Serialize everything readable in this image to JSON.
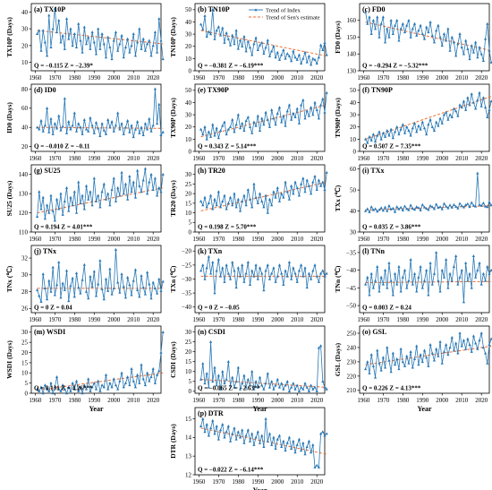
{
  "colors": {
    "series": "#2878b5",
    "trend": "#ee6a2c",
    "axis": "#000000"
  },
  "legend": {
    "index_label": "Trend of Index",
    "sen_label": "Trend of Sen's estimate"
  },
  "x_axis": {
    "label": "Year",
    "ticks": [
      1960,
      1970,
      1980,
      1990,
      2000,
      2010,
      2020
    ],
    "range": [
      1958,
      2024
    ]
  },
  "chart_data": [
    {
      "type": "line",
      "id": "a",
      "title": "(a) TX10P",
      "ylabel": "TX10P (Days)",
      "ylim": [
        5,
        45
      ],
      "yticks": [
        10,
        20,
        30,
        40
      ],
      "stats": "Q = −0.115  Z = −2.39*",
      "trend_start": 29,
      "trend_end": 21,
      "x_start": 1961,
      "values": [
        27,
        29,
        17,
        29,
        22,
        14,
        38,
        19,
        30,
        42,
        28,
        35,
        22,
        26,
        18,
        36,
        24,
        30,
        20,
        27,
        19,
        33,
        23,
        16,
        31,
        21,
        25,
        18,
        28,
        22,
        15,
        30,
        18,
        27,
        21,
        13,
        25,
        19,
        12,
        23,
        28,
        17,
        21,
        26,
        13,
        19,
        24,
        16,
        20,
        27,
        14,
        22,
        30,
        18,
        24,
        17,
        21,
        23,
        14,
        20,
        28,
        16,
        36,
        23,
        12
      ]
    },
    {
      "type": "line",
      "id": "b",
      "title": "(b) TN10P",
      "ylabel": "TN10P (Days)",
      "ylim": [
        0,
        55
      ],
      "yticks": [
        0,
        10,
        20,
        30,
        40,
        50
      ],
      "stats": "Q = −0.381  Z = −6.19***",
      "trend_start": 33,
      "trend_end": 12,
      "x_start": 1961,
      "values": [
        38,
        34,
        45,
        28,
        32,
        30,
        50,
        26,
        33,
        36,
        29,
        35,
        23,
        31,
        26,
        21,
        29,
        22,
        33,
        18,
        25,
        20,
        28,
        16,
        24,
        19,
        13,
        22,
        27,
        17,
        21,
        23,
        14,
        19,
        25,
        12,
        16,
        20,
        11,
        15,
        9,
        13,
        17,
        10,
        14,
        12,
        8,
        16,
        11,
        9,
        13,
        6,
        10,
        15,
        7,
        12,
        5,
        10,
        9,
        6,
        11,
        21,
        17,
        23,
        13
      ]
    },
    {
      "type": "line",
      "id": "c",
      "title": "(c) FD0",
      "ylabel": "FD0 (Days)",
      "ylim": [
        130,
        170
      ],
      "yticks": [
        130,
        140,
        150,
        160
      ],
      "stats": "Q = −0.294  Z = −5.32***",
      "trend_start": 159,
      "trend_end": 142,
      "x_start": 1961,
      "values": [
        165,
        158,
        162,
        152,
        160,
        155,
        162,
        150,
        158,
        162,
        147,
        155,
        150,
        160,
        152,
        157,
        160,
        148,
        155,
        158,
        153,
        157,
        160,
        150,
        155,
        158,
        151,
        154,
        157,
        152,
        149,
        156,
        153,
        159,
        151,
        147,
        154,
        157,
        150,
        145,
        152,
        148,
        155,
        142,
        150,
        147,
        139,
        146,
        152,
        144,
        140,
        148,
        143,
        137,
        145,
        141,
        147,
        138,
        144,
        140,
        136,
        149,
        158,
        142,
        135
      ]
    },
    {
      "type": "line",
      "id": "d",
      "title": "(d) ID0",
      "ylabel": "ID0 (Days)",
      "ylim": [
        15,
        85
      ],
      "yticks": [
        20,
        40,
        60,
        80
      ],
      "stats": "Q = −0.010  Z = −0.11",
      "trend_start": 40,
      "trend_end": 39,
      "x_start": 1961,
      "values": [
        40,
        38,
        47,
        36,
        42,
        60,
        35,
        49,
        33,
        44,
        39,
        52,
        37,
        41,
        70,
        34,
        46,
        38,
        42,
        55,
        36,
        44,
        40,
        33,
        48,
        38,
        36,
        50,
        42,
        34,
        45,
        39,
        31,
        44,
        37,
        33,
        48,
        40,
        46,
        36,
        42,
        55,
        38,
        44,
        33,
        40,
        47,
        35,
        42,
        30,
        38,
        46,
        34,
        40,
        32,
        44,
        38,
        49,
        36,
        42,
        80,
        44,
        64,
        32,
        35
      ]
    },
    {
      "type": "line",
      "id": "e",
      "title": "(e) TX90P",
      "ylabel": "TX90P (Days)",
      "ylim": [
        0,
        55
      ],
      "yticks": [
        0,
        10,
        20,
        30,
        40,
        50
      ],
      "stats": "Q = 0.343  Z = 5.14***",
      "trend_start": 12,
      "trend_end": 38,
      "x_start": 1961,
      "values": [
        18,
        14,
        20,
        10,
        16,
        12,
        22,
        13,
        19,
        11,
        17,
        21,
        24,
        14,
        18,
        20,
        26,
        16,
        22,
        30,
        19,
        23,
        17,
        25,
        28,
        20,
        15,
        24,
        21,
        29,
        17,
        27,
        22,
        32,
        26,
        20,
        34,
        27,
        22,
        31,
        36,
        24,
        29,
        21,
        33,
        38,
        26,
        31,
        28,
        35,
        23,
        38,
        42,
        27,
        33,
        29,
        36,
        30,
        40,
        34,
        27,
        38,
        43,
        32,
        48
      ]
    },
    {
      "type": "line",
      "id": "f",
      "title": "(f) TN90P",
      "ylabel": "TN90P (Days)",
      "ylim": [
        0,
        55
      ],
      "yticks": [
        0,
        10,
        20,
        30,
        40,
        50
      ],
      "stats": "Q = 0.507  Z = 7.35***",
      "trend_start": 10,
      "trend_end": 45,
      "x_start": 1961,
      "values": [
        10,
        7,
        12,
        9,
        14,
        8,
        13,
        16,
        10,
        15,
        12,
        17,
        13,
        18,
        11,
        16,
        20,
        14,
        18,
        22,
        15,
        20,
        17,
        13,
        19,
        23,
        16,
        21,
        18,
        24,
        19,
        14,
        22,
        26,
        20,
        17,
        24,
        21,
        27,
        23,
        30,
        32,
        26,
        30,
        28,
        35,
        33,
        29,
        38,
        36,
        41,
        34,
        44,
        38,
        47,
        40,
        35,
        42,
        48,
        37,
        44,
        36,
        28,
        34,
        41
      ]
    },
    {
      "type": "line",
      "id": "g",
      "title": "(g) SU25",
      "ylabel": "SU25 (Days)",
      "ylim": [
        110,
        145
      ],
      "yticks": [
        110,
        120,
        130,
        140
      ],
      "stats": "Q = 0.194  Z = 4.01***",
      "trend_start": 120,
      "trend_end": 133,
      "x_start": 1961,
      "values": [
        118,
        131,
        122,
        128,
        117,
        124,
        120,
        129,
        121,
        116,
        127,
        122,
        130,
        119,
        126,
        133,
        121,
        128,
        124,
        131,
        120,
        136,
        125,
        129,
        122,
        134,
        127,
        131,
        124,
        138,
        126,
        129,
        123,
        131,
        135,
        127,
        130,
        124,
        132,
        138,
        126,
        133,
        129,
        141,
        130,
        135,
        127,
        139,
        131,
        136,
        128,
        142,
        134,
        131,
        137,
        143,
        130,
        136,
        140,
        132,
        138,
        129,
        133,
        131,
        140
      ]
    },
    {
      "type": "line",
      "id": "h",
      "title": "(h) TR20",
      "ylabel": "TR20 (Days)",
      "ylim": [
        0,
        35
      ],
      "yticks": [
        0,
        5,
        10,
        15,
        20,
        25,
        30
      ],
      "stats": "Q = 0.198  Z = 5.70***",
      "trend_start": 11,
      "trend_end": 26,
      "x_start": 1961,
      "values": [
        16,
        14,
        18,
        13,
        15,
        19,
        12,
        17,
        14,
        21,
        13,
        16,
        19,
        12,
        15,
        18,
        14,
        20,
        13,
        17,
        11,
        16,
        19,
        14,
        22,
        17,
        13,
        25,
        18,
        15,
        20,
        16,
        13,
        19,
        10,
        17,
        14,
        21,
        18,
        23,
        16,
        20,
        18,
        26,
        21,
        17,
        24,
        20,
        26,
        23,
        19,
        25,
        28,
        21,
        27,
        24,
        20,
        26,
        29,
        22,
        27,
        24,
        26,
        22,
        31
      ]
    },
    {
      "type": "line",
      "id": "i",
      "title": "(i) TXx",
      "ylabel": "TXx (℃)",
      "ylim": [
        30,
        62
      ],
      "yticks": [
        30,
        40,
        50,
        60
      ],
      "stats": "Q = 0.035  Z = 3.86***",
      "trend_start": 40.5,
      "trend_end": 42.5,
      "x_start": 1961,
      "values": [
        40,
        41,
        39.5,
        42,
        40.5,
        41,
        39.8,
        40.6,
        41.5,
        40.2,
        41.8,
        40,
        42.5,
        40.8,
        41.3,
        39.6,
        42,
        40.9,
        41.7,
        40.3,
        42.3,
        41,
        40.5,
        42.8,
        41.2,
        40.7,
        42,
        41.5,
        40.4,
        43,
        41.8,
        41.2,
        40.6,
        42.5,
        41.9,
        41,
        43.2,
        41.6,
        42,
        40.9,
        43.5,
        42.2,
        41.4,
        42.8,
        41.7,
        43,
        42.1,
        41.3,
        43.6,
        42.4,
        41.8,
        42.9,
        43.4,
        42,
        44,
        42.6,
        42.2,
        58,
        43,
        42.5,
        43.8,
        42.2,
        41.9,
        44.3,
        42.8
      ]
    },
    {
      "type": "line",
      "id": "j",
      "title": "(j) TNx",
      "ylabel": "TNx (℃)",
      "ylim": [
        25.5,
        33.5
      ],
      "yticks": [
        26,
        28,
        30,
        32
      ],
      "stats": "Q = 0  Z = 0.04",
      "trend_start": 28.4,
      "trend_end": 28.4,
      "x_start": 1961,
      "values": [
        28.2,
        27.5,
        26.8,
        30.1,
        28.4,
        27.1,
        29.3,
        28,
        30.9,
        27.6,
        28.8,
        31.5,
        27.3,
        29,
        28.2,
        30.5,
        26.9,
        28.7,
        29.6,
        27.4,
        30.2,
        28.5,
        27.8,
        29.4,
        31.2,
        28,
        27.2,
        29.8,
        28.6,
        30.4,
        27.5,
        28.9,
        31.7,
        28.3,
        27.1,
        29.5,
        28.1,
        30.7,
        27.7,
        28.4,
        33,
        29.1,
        27.9,
        30.1,
        28.6,
        27.3,
        29.7,
        28.8,
        27.6,
        29.3,
        30.6,
        28.2,
        27.4,
        29.9,
        28.5,
        27.7,
        30.3,
        28.9,
        27.2,
        29.1,
        28.4,
        27.8,
        29.5,
        28.1,
        29.2
      ]
    },
    {
      "type": "line",
      "id": "k",
      "title": "(k) TXn",
      "ylabel": "TXn (℃)",
      "ylim": [
        -42,
        -18
      ],
      "yticks": [
        -40,
        -35,
        -30,
        -25,
        -20
      ],
      "stats": "Q = 0  Z = −0.05",
      "trend_start": -29,
      "trend_end": -29,
      "x_start": 1961,
      "values": [
        -27,
        -25,
        -30,
        -26,
        -22,
        -28,
        -24,
        -35,
        -27,
        -23,
        -29,
        -26,
        -31,
        -25,
        -28,
        -30,
        -24,
        -27,
        -33,
        -26,
        -29,
        -25,
        -31,
        -28,
        -24,
        -32,
        -27,
        -29,
        -25,
        -30,
        -26,
        -28,
        -34,
        -27,
        -25,
        -30,
        -28,
        -26,
        -31,
        -29,
        -25,
        -28,
        -32,
        -27,
        -29,
        -24,
        -30,
        -26,
        -28,
        -31,
        -27,
        -25,
        -29,
        -26,
        -33,
        -28,
        -30,
        -27,
        -25,
        -29,
        -31,
        -28,
        -27,
        -29,
        -28
      ]
    },
    {
      "type": "line",
      "id": "l",
      "title": "(l) TNn",
      "ylabel": "TNn (℃)",
      "ylim": [
        -52,
        -33
      ],
      "yticks": [
        -50,
        -45,
        -40,
        -35
      ],
      "stats": "Q = 0.003  Z = 0.24",
      "trend_start": -43.5,
      "trend_end": -43.2,
      "x_start": 1961,
      "values": [
        -44,
        -42,
        -47,
        -41,
        -45,
        -43,
        -39,
        -46,
        -42,
        -44,
        -40,
        -45,
        -38,
        -43,
        -47,
        -41,
        -44,
        -39,
        -46,
        -42,
        -40,
        -45,
        -43,
        -37,
        -44,
        -41,
        -46,
        -42,
        -39,
        -45,
        -43,
        -40,
        -47,
        -38,
        -44,
        -41,
        -35,
        -43,
        -46,
        -40,
        -42,
        -37,
        -45,
        -41,
        -43,
        -39,
        -36,
        -44,
        -42,
        -40,
        -49,
        -38,
        -43,
        -41,
        -45,
        -36,
        -42,
        -40,
        -38,
        -44,
        -41,
        -43,
        -39,
        -41,
        -40
      ]
    },
    {
      "type": "line",
      "id": "m",
      "title": "(m) WSDI",
      "ylabel": "WSDI (Days)",
      "ylim": [
        0,
        33
      ],
      "yticks": [
        0,
        5,
        10,
        15,
        20,
        25,
        30
      ],
      "stats": "Q = 0.131  Z = 4.26***",
      "trend_start": 1.5,
      "trend_end": 10,
      "x_start": 1961,
      "values": [
        2,
        1,
        3,
        0,
        4,
        2,
        1,
        5,
        0,
        3,
        8,
        2,
        1,
        4,
        2,
        0,
        3,
        1,
        5,
        2,
        6,
        1,
        3,
        0,
        4,
        2,
        7,
        1,
        3,
        5,
        2,
        6,
        1,
        4,
        3,
        9,
        2,
        5,
        3,
        7,
        4,
        2,
        6,
        10,
        3,
        5,
        8,
        4,
        12,
        6,
        3,
        9,
        5,
        14,
        7,
        4,
        10,
        6,
        8,
        12,
        5,
        9,
        11,
        20,
        30
      ]
    },
    {
      "type": "line",
      "id": "n",
      "title": "(n) CSDI",
      "ylabel": "CSDI (Days)",
      "ylim": [
        -1,
        33
      ],
      "yticks": [
        0,
        5,
        10,
        15,
        20,
        25,
        30
      ],
      "stats": "Q = −0.065  Z = −2.63**",
      "trend_start": 6,
      "trend_end": 2,
      "x_start": 1961,
      "values": [
        6,
        14,
        4,
        9,
        2,
        25,
        5,
        12,
        3,
        8,
        1,
        10,
        4,
        6,
        15,
        3,
        7,
        2,
        5,
        12,
        1,
        4,
        8,
        2,
        6,
        3,
        10,
        1,
        5,
        2,
        7,
        3,
        1,
        4,
        9,
        2,
        5,
        1,
        3,
        6,
        2,
        4,
        1,
        3,
        5,
        0,
        2,
        4,
        1,
        3,
        0,
        2,
        1,
        4,
        2,
        0,
        3,
        1,
        2,
        0,
        22,
        23,
        5,
        2,
        1
      ]
    },
    {
      "type": "line",
      "id": "o",
      "title": "(o) GSL",
      "ylabel": "GSL (Days)",
      "ylim": [
        208,
        255
      ],
      "yticks": [
        210,
        220,
        230,
        240,
        250
      ],
      "stats": "Q = 0.226  Z = 4.13***",
      "trend_start": 228,
      "trend_end": 241,
      "x_start": 1961,
      "values": [
        225,
        230,
        222,
        235,
        227,
        219,
        238,
        229,
        224,
        233,
        226,
        240,
        231,
        223,
        236,
        228,
        232,
        225,
        239,
        230,
        227,
        234,
        229,
        237,
        226,
        232,
        241,
        228,
        235,
        230,
        238,
        233,
        227,
        242,
        236,
        231,
        239,
        234,
        244,
        229,
        237,
        242,
        235,
        240,
        247,
        238,
        243,
        236,
        250,
        241,
        245,
        239,
        246,
        242,
        237,
        248,
        243,
        239,
        245,
        250,
        240,
        236,
        229,
        242,
        246
      ]
    },
    {
      "type": "line",
      "id": "p",
      "title": "(p) DTR",
      "ylabel": "DTR (Days)",
      "ylim": [
        12,
        15.6
      ],
      "yticks": [
        12,
        13,
        14,
        15
      ],
      "stats": "Q = −0.022  Z = −6.14***",
      "trend_start": 14.5,
      "trend_end": 13.1,
      "x_start": 1961,
      "values": [
        14.6,
        15,
        14.3,
        14.7,
        14.1,
        14.5,
        14.9,
        14.2,
        14.6,
        13.9,
        14.4,
        14.7,
        14.0,
        14.3,
        14.6,
        13.8,
        14.2,
        14.5,
        13.9,
        14.3,
        14.0,
        14.4,
        13.7,
        14.1,
        14.4,
        13.8,
        14.2,
        13.6,
        14.0,
        14.3,
        13.7,
        14.1,
        13.5,
        15,
        13.8,
        14.2,
        13.6,
        14.0,
        13.4,
        13.9,
        14.1,
        13.5,
        13.8,
        13.3,
        13.7,
        14.0,
        13.4,
        13.8,
        13.2,
        13.6,
        13.9,
        13.3,
        13.7,
        13.1,
        13.5,
        13.8,
        13.2,
        13.6,
        12.4,
        12.5,
        12.4,
        14.2,
        14.3,
        14.1,
        14.2
      ]
    }
  ]
}
